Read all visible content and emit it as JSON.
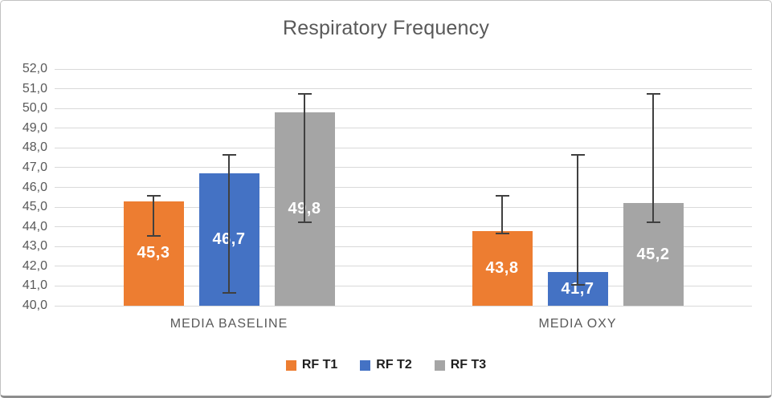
{
  "frame": {
    "background": "#ffffff",
    "border_color": "#c2c2c2",
    "bottom_edge_color": "#8e8e8e"
  },
  "chart_data": {
    "type": "bar",
    "title": "Respiratory Frequency",
    "categories": [
      "MEDIA BASELINE",
      "MEDIA OXY"
    ],
    "series": [
      {
        "name": "RF T1",
        "color": "#ED7D31",
        "values": [
          45.3,
          43.8
        ],
        "value_labels": [
          "45,3",
          "43,8"
        ],
        "error_high": [
          45.6,
          45.6
        ],
        "error_low": [
          43.5,
          43.6
        ]
      },
      {
        "name": "RF T2",
        "color": "#4472C4",
        "values": [
          46.7,
          41.7
        ],
        "value_labels": [
          "46,7",
          "41,7"
        ],
        "error_high": [
          47.7,
          47.7
        ],
        "error_low": [
          40.6,
          41.0
        ]
      },
      {
        "name": "RF T3",
        "color": "#A5A5A5",
        "values": [
          49.8,
          45.2
        ],
        "value_labels": [
          "49,8",
          "45,2"
        ],
        "error_high": [
          50.8,
          50.8
        ],
        "error_low": [
          44.2,
          44.2
        ]
      }
    ],
    "ylim": [
      40,
      52
    ],
    "ytick_values": [
      40,
      41,
      42,
      43,
      44,
      45,
      46,
      47,
      48,
      49,
      50,
      51,
      52
    ],
    "ytick_labels": [
      "40,0",
      "41,0",
      "42,0",
      "43,0",
      "44,0",
      "45,0",
      "46,0",
      "47,0",
      "48,0",
      "49,0",
      "50,0",
      "51,0",
      "52,0"
    ],
    "xlabel": "",
    "ylabel": "",
    "grid": true,
    "error_bars": true,
    "legend_position": "bottom",
    "decimal_separator": ","
  },
  "style": {
    "grid_color": "#d9d9d9",
    "axis_text_color": "#595959",
    "title_color": "#595959",
    "legend_text_color": "#1f1f1f",
    "error_bar_color": "#404040",
    "bar_label_color": "#ffffff"
  }
}
